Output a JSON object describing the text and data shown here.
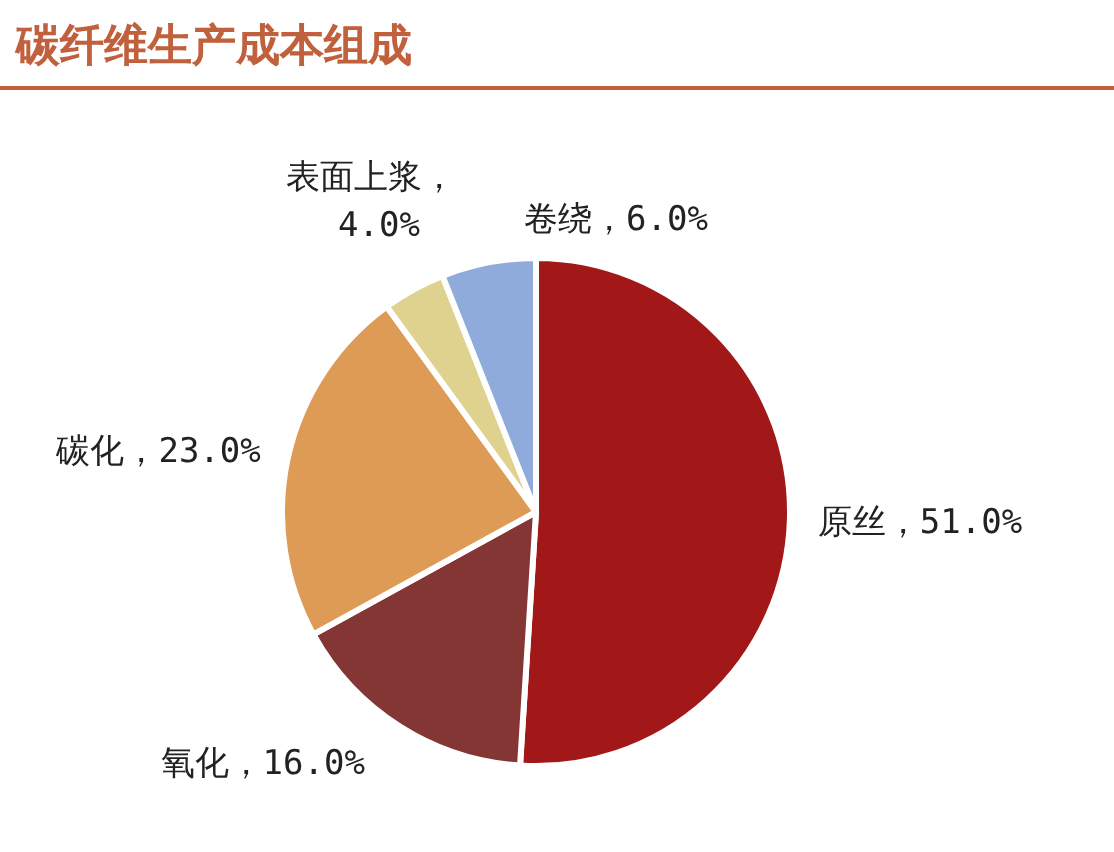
{
  "chart_data": {
    "type": "pie",
    "title": "碳纤维生产成本组成",
    "categories": [
      "原丝",
      "氧化",
      "碳化",
      "表面上浆",
      "卷绕"
    ],
    "values": [
      51,
      16,
      23,
      4,
      6
    ],
    "colors": [
      "#a21717",
      "#843634",
      "#dd9b55",
      "#ded28e",
      "#8eabdc"
    ],
    "value_labels": [
      "，51.0%",
      "，16.0%",
      "，23.0%",
      "，4.0%",
      "，6.0%"
    ]
  }
}
